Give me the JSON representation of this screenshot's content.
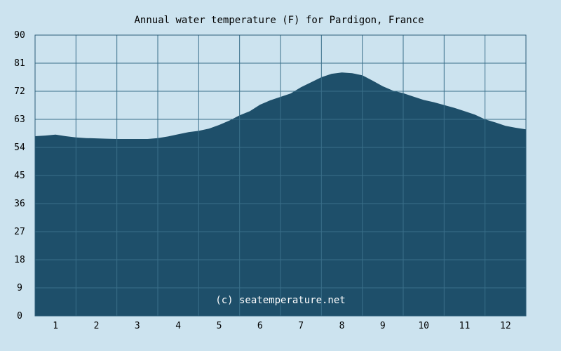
{
  "chart_data": {
    "type": "area",
    "title": "Annual water temperature (F) for Pardigon, France",
    "xlabel": "",
    "ylabel": "",
    "ylim": [
      0,
      90
    ],
    "xlim": [
      0.5,
      12.5
    ],
    "y_ticks": [
      "0",
      "9",
      "18",
      "27",
      "36",
      "45",
      "54",
      "63",
      "72",
      "81",
      "90"
    ],
    "x_ticks": [
      "1",
      "2",
      "3",
      "4",
      "5",
      "6",
      "7",
      "8",
      "9",
      "10",
      "11",
      "12"
    ],
    "grid": true,
    "watermark": "(c) seatemperature.net",
    "colors": {
      "background": "#cce3ef",
      "area": "#1e4f6a",
      "grid": "#3a6f8a",
      "plot_border": "#2d5e78"
    },
    "series": [
      {
        "x": [
          0.5,
          0.75,
          1.0,
          1.25,
          1.5,
          1.75,
          2.0,
          2.25,
          2.5,
          2.75,
          3.0,
          3.25,
          3.5,
          3.75,
          4.0,
          4.25,
          4.5,
          4.75,
          5.0,
          5.25,
          5.5,
          5.75,
          6.0,
          6.25,
          6.5,
          6.75,
          7.0,
          7.25,
          7.5,
          7.75,
          8.0,
          8.25,
          8.5,
          8.75,
          9.0,
          9.25,
          9.5,
          9.75,
          10.0,
          10.25,
          10.5,
          10.75,
          11.0,
          11.25,
          11.5,
          11.75,
          12.0,
          12.25,
          12.5
        ],
        "values": [
          57.6,
          57.8,
          58.1,
          57.6,
          57.2,
          57.0,
          56.9,
          56.8,
          56.7,
          56.7,
          56.7,
          56.7,
          57.0,
          57.5,
          58.2,
          58.9,
          59.3,
          60.0,
          61.2,
          62.6,
          64.3,
          65.6,
          67.7,
          69.1,
          70.2,
          71.3,
          73.3,
          74.9,
          76.5,
          77.6,
          78.0,
          77.8,
          77.1,
          75.4,
          73.6,
          72.2,
          71.4,
          70.3,
          69.2,
          68.5,
          67.6,
          66.7,
          65.6,
          64.5,
          63.0,
          62.0,
          60.9,
          60.3,
          59.8
        ]
      }
    ]
  }
}
